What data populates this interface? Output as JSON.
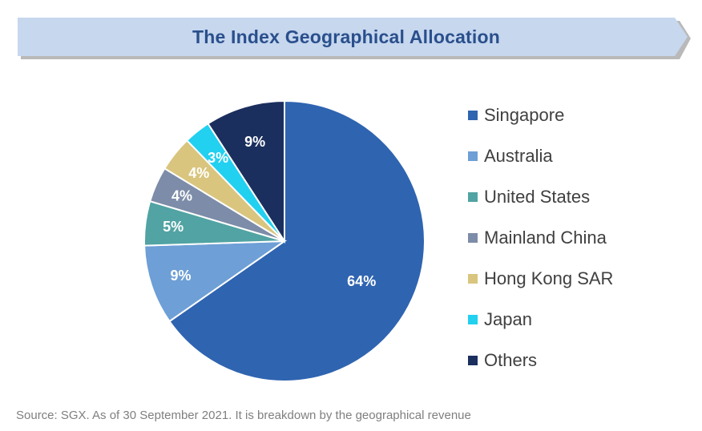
{
  "header": {
    "title": "The Index Geographical Allocation"
  },
  "chart_data": {
    "type": "pie",
    "title": "The Index Geographical Allocation",
    "categories": [
      "Singapore",
      "Australia",
      "United States",
      "Mainland China",
      "Hong Kong SAR",
      "Japan",
      "Others"
    ],
    "values": [
      64,
      9,
      5,
      4,
      4,
      3,
      9
    ],
    "labels": [
      "64%",
      "9%",
      "5%",
      "4%",
      "4%",
      "3%",
      "9%"
    ],
    "colors": [
      "#2f64b0",
      "#6e9fd6",
      "#52a3a3",
      "#7d8ca8",
      "#d9c57e",
      "#22d0f0",
      "#1b2f5e"
    ],
    "legend_position": "right"
  },
  "footer": {
    "source": "Source: SGX. As of 30 September 2021. It is breakdown by the geographical revenue"
  }
}
